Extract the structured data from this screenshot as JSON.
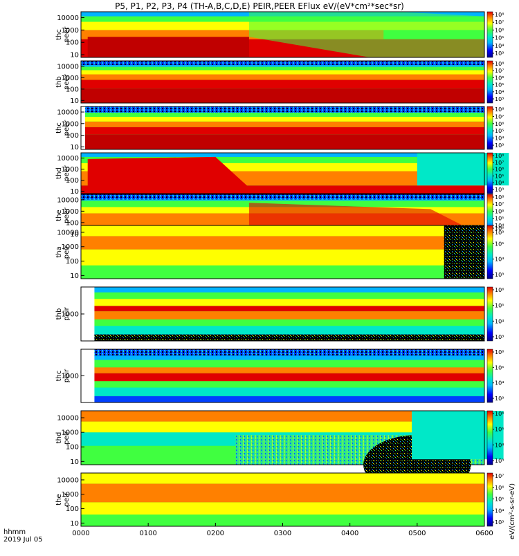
{
  "title": "P5, P1, P2, P3, P4 (TH-A,B,C,D,E) PEIR,PEER EFlux eV/(eV*cm²*sec*sr)",
  "x_axis": {
    "label_line1": "hhmm",
    "label_line2": "2019 Jul 05",
    "ticks": [
      "0000",
      "0100",
      "0200",
      "0300",
      "0400",
      "0500",
      "0600"
    ]
  },
  "colorbar_unit": "eV/(cm²-s-sr-eV)",
  "chart_data": [
    {
      "type": "heatmap",
      "ylabel": [
        "thc",
        "peer"
      ],
      "yscale": "log",
      "ylim": [
        6,
        30000
      ],
      "y_ticks": [
        "10",
        "100",
        "1000",
        "10000"
      ],
      "cbar_ticks": [
        "10³",
        "10⁴",
        "10⁵",
        "10⁶",
        "10⁷",
        "10⁸"
      ],
      "colormap": "rainbow"
    },
    {
      "type": "heatmap",
      "ylabel": [
        "thb",
        "peer"
      ],
      "yscale": "log",
      "ylim": [
        6,
        30000
      ],
      "y_ticks": [
        "10",
        "100",
        "1000",
        "10000"
      ],
      "cbar_ticks": [
        "10³",
        "10⁴",
        "10⁵",
        "10⁶",
        "10⁷",
        "10⁸"
      ],
      "colormap": "rainbow"
    },
    {
      "type": "heatmap",
      "ylabel": [
        "thc",
        "peer"
      ],
      "yscale": "log",
      "ylim": [
        6,
        30000
      ],
      "y_ticks": [
        "10",
        "100",
        "1000",
        "10000"
      ],
      "cbar_ticks": [
        "10³",
        "10⁴",
        "10⁵",
        "10⁶",
        "10⁷",
        "10⁸"
      ],
      "colormap": "rainbow"
    },
    {
      "type": "heatmap",
      "ylabel": [
        "thd",
        "peer"
      ],
      "yscale": "log",
      "ylim": [
        6,
        30000
      ],
      "y_ticks": [
        "10",
        "100",
        "1000",
        "10000"
      ],
      "cbar_ticks": [
        "10³",
        "10⁴",
        "10⁵",
        "10⁶",
        "10⁷",
        "10⁸"
      ],
      "colormap": "rainbow"
    },
    {
      "type": "heatmap",
      "ylabel": [
        "the",
        "peer"
      ],
      "yscale": "log",
      "ylim": [
        6,
        30000
      ],
      "y_ticks": [
        "10",
        "100",
        "1000",
        "10000"
      ],
      "cbar_ticks": [
        "10³",
        "10⁴",
        "10⁵",
        "10⁶",
        "10⁷",
        "10⁸"
      ],
      "colormap": "rainbow"
    },
    {
      "type": "heatmap",
      "ylabel": [
        "tha",
        "peir"
      ],
      "yscale": "log",
      "ylim": [
        6,
        30000
      ],
      "y_ticks": [
        "10",
        "100",
        "1000",
        "10000"
      ],
      "cbar_ticks": [
        "10³",
        "10⁴",
        "10⁵",
        "10⁶"
      ],
      "colormap": "rainbow"
    },
    {
      "type": "heatmap",
      "ylabel": [
        "thb",
        "peir"
      ],
      "yscale": "log",
      "ylim": [
        100,
        10000
      ],
      "y_ticks": [
        "1000"
      ],
      "cbar_ticks": [
        "10³",
        "10⁴",
        "10⁵",
        "10⁶"
      ],
      "colormap": "rainbow"
    },
    {
      "type": "heatmap",
      "ylabel": [
        "thc",
        "peir"
      ],
      "yscale": "log",
      "ylim": [
        100,
        10000
      ],
      "y_ticks": [
        "1000"
      ],
      "cbar_ticks": [
        "10³",
        "10⁴",
        "10⁵",
        "10⁶"
      ],
      "colormap": "rainbow"
    },
    {
      "type": "heatmap",
      "ylabel": [
        "thd",
        "peir"
      ],
      "yscale": "log",
      "ylim": [
        6,
        30000
      ],
      "y_ticks": [
        "10",
        "100",
        "1000",
        "10000"
      ],
      "cbar_ticks": [
        "10³",
        "10⁴",
        "10⁵",
        "10⁶"
      ],
      "colormap": "rainbow"
    },
    {
      "type": "heatmap",
      "ylabel": [
        "the",
        "peir"
      ],
      "yscale": "log",
      "ylim": [
        6,
        30000
      ],
      "y_ticks": [
        "10",
        "100",
        "1000",
        "10000"
      ],
      "cbar_ticks": [
        "10³",
        "10⁴",
        "10⁵",
        "10⁶",
        "10⁷"
      ],
      "colormap": "rainbow"
    }
  ]
}
